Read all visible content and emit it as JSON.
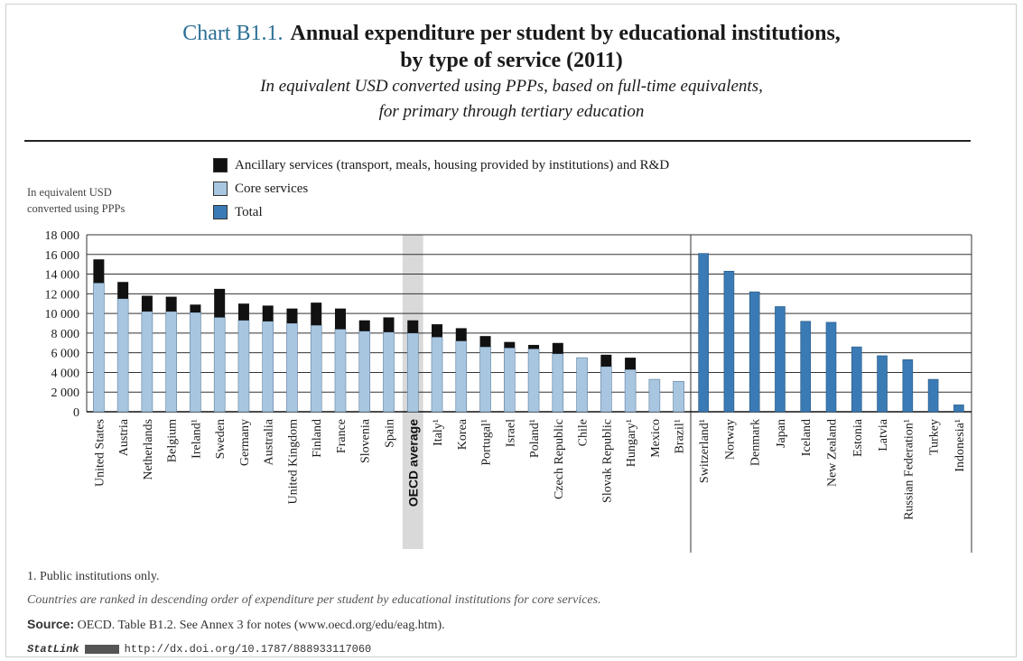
{
  "header": {
    "chart_number": "Chart B1.1.",
    "title_line1": "Annual expenditure per student by educational institutions,",
    "title_line2": "by type of service (2011)",
    "subtitle_line1": "In equivalent USD converted using PPPs, based on full-time equivalents,",
    "subtitle_line2": "for primary through tertiary education"
  },
  "legend": {
    "ancillary": "Ancillary services (transport, meals, housing provided by institutions) and R&D",
    "core": "Core services",
    "total": "Total"
  },
  "colors": {
    "ancillary": "#111111",
    "core": "#a9c6e0",
    "total": "#3b7bb5",
    "oecd_band": "#d9d9d9",
    "grid": "#333333"
  },
  "ylabel": {
    "line1": "In equivalent USD",
    "line2": "converted using PPPs"
  },
  "chart_data": {
    "type": "bar",
    "stacked": true,
    "title": "Annual expenditure per student by educational institutions, by type of service (2011)",
    "ylabel": "In equivalent USD converted using PPPs",
    "ylim": [
      0,
      18000
    ],
    "yticks": [
      "0",
      "2 000",
      "4 000",
      "6 000",
      "8 000",
      "10 000",
      "12 000",
      "14 000",
      "16 000",
      "18 000"
    ],
    "ytick_values": [
      0,
      2000,
      4000,
      6000,
      8000,
      10000,
      12000,
      14000,
      16000,
      18000
    ],
    "grid": true,
    "legend_position": "top",
    "highlighted_category": "OECD average",
    "categories_left": [
      "United States",
      "Austria",
      "Netherlands",
      "Belgium",
      "Ireland¹",
      "Sweden",
      "Germany",
      "Australia",
      "United Kingdom",
      "Finland",
      "France",
      "Slovenia",
      "Spain",
      "OECD average",
      "Italy¹",
      "Korea",
      "Portugal¹",
      "Israel",
      "Poland¹",
      "Czech Republic",
      "Chile",
      "Slovak Republic",
      "Hungary¹",
      "Mexico",
      "Brazil¹"
    ],
    "series_left": [
      {
        "name": "Core services",
        "values": [
          13100,
          11500,
          10200,
          10200,
          10100,
          9600,
          9300,
          9200,
          9000,
          8800,
          8400,
          8200,
          8100,
          8000,
          7600,
          7200,
          6600,
          6500,
          6400,
          5900,
          5500,
          4600,
          4300,
          3300,
          3100
        ]
      },
      {
        "name": "Ancillary services (transport, meals, housing provided by institutions) and R&D",
        "values": [
          2400,
          1700,
          1600,
          1500,
          800,
          2900,
          1700,
          1600,
          1500,
          2300,
          2100,
          1100,
          1500,
          1300,
          1300,
          1300,
          1100,
          600,
          400,
          1100,
          0,
          1200,
          1200,
          0,
          0
        ]
      }
    ],
    "categories_right": [
      "Switzerland¹",
      "Norway",
      "Denmark",
      "Japan",
      "Iceland",
      "New Zealand",
      "Estonia",
      "Latvia",
      "Russian Federation¹",
      "Turkey",
      "Indonesia¹"
    ],
    "series_right": [
      {
        "name": "Total",
        "values": [
          16100,
          14300,
          12200,
          10700,
          9200,
          9100,
          6600,
          5700,
          5300,
          3300,
          700
        ]
      }
    ]
  },
  "footnotes": {
    "note1": "1. Public institutions only.",
    "ranking": "Countries are ranked in descending order of expenditure per student by educational institutions for core services.",
    "source_label": "Source:",
    "source_text": "OECD. Table B1.2. See Annex 3 for notes (www.oecd.org/edu/eag.htm).",
    "statlink_label": "StatLink",
    "statlink_url": "http://dx.doi.org/10.1787/888933117060"
  }
}
